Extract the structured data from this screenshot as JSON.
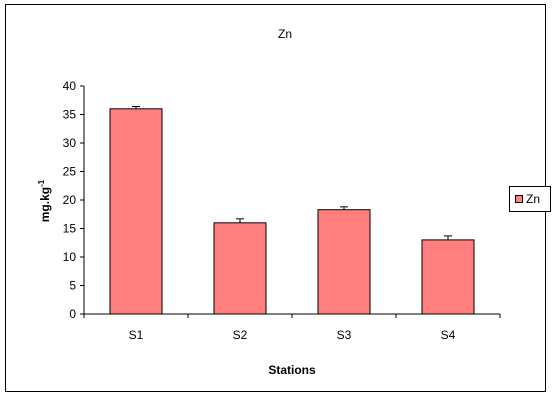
{
  "chart_data": {
    "type": "bar",
    "title": "Zn",
    "xlabel": "Stations",
    "ylabel": "mg.kg",
    "ylabel_superscript": "-1",
    "categories": [
      "S1",
      "S2",
      "S3",
      "S4"
    ],
    "series": [
      {
        "name": "Zn",
        "values": [
          36,
          16,
          18.3,
          13
        ],
        "error": [
          0.4,
          0.7,
          0.5,
          0.7
        ],
        "color": "#FF7F7F"
      }
    ],
    "ylim": [
      0,
      40
    ],
    "yticks": [
      "0",
      "5",
      "10",
      "15",
      "20",
      "25",
      "30",
      "35",
      "40"
    ],
    "grid": false,
    "legend_position": "right"
  }
}
